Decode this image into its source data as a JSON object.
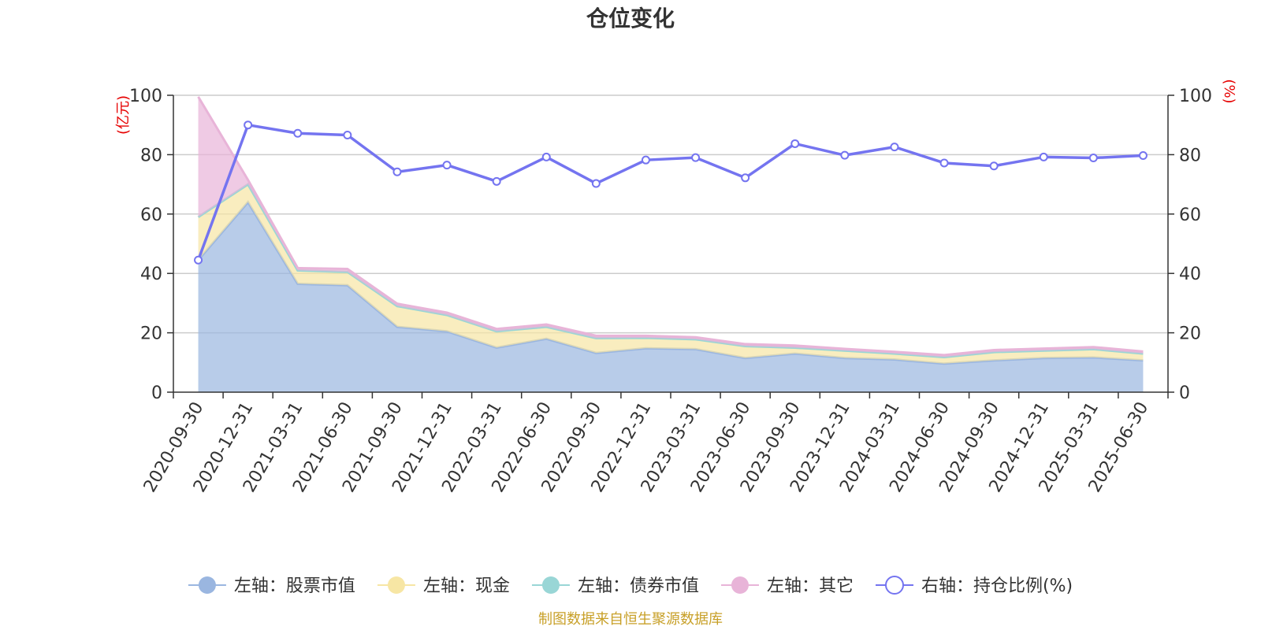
{
  "title": "仓位变化",
  "source": "制图数据来自恒生聚源数据库",
  "chart_data": {
    "type": "area",
    "categories": [
      "2020-09-30",
      "2020-12-31",
      "2021-03-31",
      "2021-06-30",
      "2021-09-30",
      "2021-12-31",
      "2022-03-31",
      "2022-06-30",
      "2022-09-30",
      "2022-12-31",
      "2023-03-31",
      "2023-06-30",
      "2023-09-30",
      "2023-12-31",
      "2024-03-31",
      "2024-06-30",
      "2024-09-30",
      "2024-12-31",
      "2025-03-31",
      "2025-06-30"
    ],
    "left_axis": {
      "unit": "(亿元)",
      "ylim": [
        0,
        100
      ],
      "ticks": [
        0,
        20,
        40,
        60,
        80,
        100
      ]
    },
    "right_axis": {
      "unit": "(%)",
      "ylim": [
        0,
        100
      ],
      "ticks": [
        0,
        20,
        40,
        60,
        80,
        100
      ]
    },
    "grid": true,
    "legend_position": "bottom",
    "stacked_series": [
      {
        "name": "左轴：股票市值",
        "color": "#9ab6e0",
        "values": [
          44.5,
          64.0,
          36.5,
          36.0,
          22.0,
          20.5,
          15.0,
          18.0,
          13.2,
          14.8,
          14.5,
          11.5,
          13.0,
          11.5,
          11.0,
          9.6,
          10.7,
          11.5,
          11.7,
          10.7
        ]
      },
      {
        "name": "左轴：现金",
        "color": "#f7e6a4",
        "values": [
          14.5,
          6.0,
          4.5,
          4.5,
          7.0,
          5.5,
          5.5,
          4.0,
          5.0,
          3.5,
          3.3,
          4.0,
          2.0,
          2.5,
          2.0,
          2.2,
          2.8,
          2.5,
          2.8,
          2.3
        ]
      },
      {
        "name": "左轴：债券市值",
        "color": "#99d6d6",
        "values": [
          0,
          0,
          0,
          0,
          0,
          0,
          0,
          0,
          0,
          0,
          0,
          0,
          0,
          0,
          0,
          0,
          0,
          0,
          0,
          0
        ]
      },
      {
        "name": "左轴：其它",
        "color": "#e8b4d8",
        "values": [
          40.5,
          1.5,
          0.8,
          1.0,
          0.8,
          0.8,
          0.8,
          0.8,
          0.8,
          0.7,
          0.7,
          0.7,
          0.7,
          0.6,
          0.6,
          0.7,
          0.7,
          0.7,
          0.7,
          0.7
        ]
      }
    ],
    "line_series": {
      "name": "右轴：持仓比例(%)",
      "color": "#7474f0",
      "values": [
        44.5,
        90.0,
        87.2,
        86.6,
        74.2,
        76.5,
        71.0,
        79.2,
        70.3,
        78.2,
        79.0,
        72.2,
        83.7,
        79.8,
        82.6,
        77.2,
        76.2,
        79.2,
        78.9,
        79.7
      ]
    }
  }
}
